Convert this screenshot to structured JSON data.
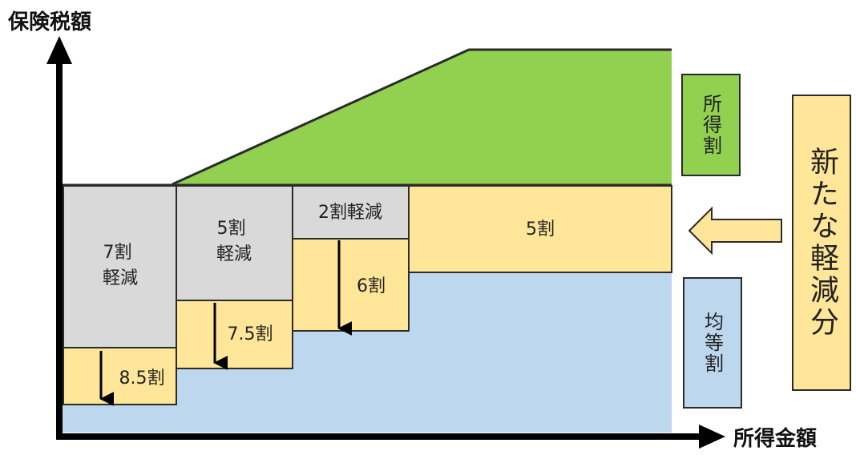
{
  "axes": {
    "y_title": "保険税額",
    "x_title": "所得金額"
  },
  "regions": {
    "income": "所得割",
    "flat": "均等割",
    "new_reduction": "新たな軽減分"
  },
  "boxes": {
    "r7": "7割\n軽減",
    "r5": "5割\n軽減",
    "r2": "2割軽減",
    "s85": "8.5割",
    "s75": "7.5割",
    "s6": "6割",
    "s5": "5割"
  },
  "colors": {
    "green": "#92d050",
    "blue": "#bdd7ee",
    "yellow": "#ffe699",
    "gray": "#d9d9d9",
    "line": "#2b2b2b",
    "axis": "#000000"
  }
}
